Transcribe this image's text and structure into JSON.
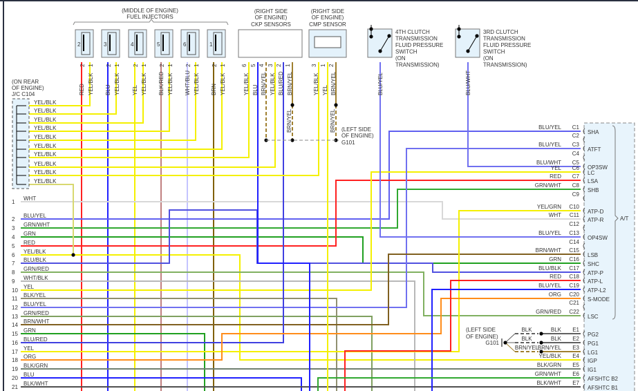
{
  "labels": {
    "injectors_location": "(MIDDLE OF ENGINE)",
    "injectors_title": "FUEL INJECTORS",
    "ckp_location_1": "(RIGHT SIDE",
    "ckp_location_2": "OF ENGINE)",
    "ckp_title": "CKP SENSORS",
    "cmp_location_1": "(RIGHT SIDE",
    "cmp_location_2": "OF ENGINE)",
    "cmp_title": "CMP SENSOR",
    "jc_location_1": "(ON REAR",
    "jc_location_2": "OF ENGINE)",
    "jc_title": "J/C C104",
    "ground_location_1": "(LEFT SIDE",
    "ground_location_2": "OF ENGINE)",
    "ground_id": "G101",
    "at_label": "A/T"
  },
  "switches": [
    {
      "lines": [
        "4TH CLUTCH",
        "TRANSMISSION",
        "FLUID PRESSURE",
        "SWITCH",
        "(ON",
        "TRANSMISSION)"
      ],
      "wire": "BLU/YEL",
      "color": "#7070f0"
    },
    {
      "lines": [
        "3RD CLUTCH",
        "TRANSMISSION",
        "FLUID PRESSURE",
        "SWITCH",
        "(ON",
        "TRANSMISSION)"
      ],
      "wire": "BLU/WHT",
      "color": "#7070f0"
    }
  ],
  "injectors": [
    {
      "num": "2",
      "pin2": "2",
      "pin1": "1",
      "wire2": "RED",
      "color2": "#ff2020",
      "wire1": "YEL/BLK"
    },
    {
      "num": "3",
      "pin2": "2",
      "pin1": "1",
      "wire2": "BLU",
      "color2": "#2020ff",
      "wire1": "YEL/BLK"
    },
    {
      "num": "4",
      "pin2": "2",
      "pin1": "1",
      "wire2": "YEL",
      "color2": "#f4f000",
      "wire1": "YEL/BLK"
    },
    {
      "num": "5",
      "pin2": "2",
      "pin1": "1",
      "wire2": "BLK/RED",
      "color2": "#c08080",
      "wire1": "YEL/BLK"
    },
    {
      "num": "6",
      "pin2": "2",
      "pin1": "1",
      "wire2": "WHT/BLU",
      "color2": "#c4c4ff",
      "wire1": "YEL/BLK"
    },
    {
      "num": "1",
      "pin2": "2",
      "pin1": "1",
      "wire2": "BRN",
      "color2": "#806000",
      "wire1": "YEL/BLK"
    }
  ],
  "ckp_pins": [
    {
      "pin": "6",
      "wire": "YEL/BLK",
      "color": "#f4f000"
    },
    {
      "pin": "5",
      "wire": "BLU",
      "color": "#2020ff"
    },
    {
      "pin": "4",
      "wire": "BRN/YEL",
      "color": "#a08030"
    },
    {
      "pin": "3",
      "wire": "YEL/BLK",
      "color": "#f4f000"
    },
    {
      "pin": "2",
      "wire": "BLU/RED",
      "color": "#5050f0"
    },
    {
      "pin": "1",
      "wire": "BRN/YEL",
      "color": "#a08030"
    }
  ],
  "cmp_pins": [
    {
      "pin": "3",
      "wire": "YEL/BLK",
      "color": "#f4f000"
    },
    {
      "pin": "1",
      "wire": "YEL",
      "color": "#f4f000"
    },
    {
      "pin": "2",
      "wire": "BRN/YEL",
      "color": "#a08030"
    }
  ],
  "ground_splice_wires": [
    "BRN/YEL",
    "BRN/YEL"
  ],
  "jc_rows": [
    "YEL/BLK",
    "YEL/BLK",
    "YEL/BLK",
    "YEL/BLK",
    "YEL/BLK",
    "YEL/BLK",
    "YEL/BLK",
    "YEL/BLK",
    "YEL/BLK",
    "YEL/BLK"
  ],
  "rows": [
    {
      "num": "1",
      "wire": "WHT",
      "color": "#d8d8d8"
    },
    {
      "num": "2",
      "wire": "BLU/YEL",
      "color": "#6060f0"
    },
    {
      "num": "3",
      "wire": "GRN/WHT",
      "color": "#30a830"
    },
    {
      "num": "4",
      "wire": "GRN",
      "color": "#20a020"
    },
    {
      "num": "5",
      "wire": "RED",
      "color": "#ff2020"
    },
    {
      "num": "6",
      "wire": "YEL/BLK",
      "color": "#f4f000"
    },
    {
      "num": "7",
      "wire": "BLU/BLK",
      "color": "#5050e0"
    },
    {
      "num": "8",
      "wire": "GRN/RED",
      "color": "#80b060"
    },
    {
      "num": "9",
      "wire": "WHT/BLK",
      "color": "#b8b8b8"
    },
    {
      "num": "10",
      "wire": "YEL",
      "color": "#f4f000"
    },
    {
      "num": "11",
      "wire": "BLK/YEL",
      "color": "#909070"
    },
    {
      "num": "12",
      "wire": "BLU/YEL",
      "color": "#7070f0"
    },
    {
      "num": "13",
      "wire": "GRN/RED",
      "color": "#80a060"
    },
    {
      "num": "14",
      "wire": "BRN/WHT",
      "color": "#806020"
    },
    {
      "num": "15",
      "wire": "GRN",
      "color": "#20a020"
    },
    {
      "num": "16",
      "wire": "BLU/RED",
      "color": "#4040e0"
    },
    {
      "num": "17",
      "wire": "YEL",
      "color": "#f4f000"
    },
    {
      "num": "18",
      "wire": "ORG",
      "color": "#ff8c1a"
    },
    {
      "num": "19",
      "wire": "BLK/GRN",
      "color": "#708070"
    },
    {
      "num": "20",
      "wire": "BLU",
      "color": "#2020ff"
    },
    {
      "num": "21",
      "wire": "BLK/WHT",
      "color": "#505050"
    }
  ],
  "pins": [
    {
      "pin": "C1",
      "wire": "BLU/YEL",
      "func": "SHA",
      "color": "#2020ff"
    },
    {
      "pin": "C2",
      "wire": "",
      "func": ""
    },
    {
      "pin": "C3",
      "wire": "BLU/YEL",
      "func": "ATFT",
      "color": "#7070f0"
    },
    {
      "pin": "C4",
      "wire": "",
      "func": ""
    },
    {
      "pin": "C5",
      "wire": "BLU/WHT",
      "func": "OP3SW",
      "color": "#7070f0"
    },
    {
      "pin": "C6",
      "wire": "YEL",
      "func": "LC",
      "color": "#f4f000"
    },
    {
      "pin": "C7",
      "wire": "RED",
      "func": "LSA",
      "color": "#ff2020"
    },
    {
      "pin": "C8",
      "wire": "GRN/WHT",
      "func": "SHB",
      "color": "#30a830"
    },
    {
      "pin": "C9",
      "wire": "",
      "func": ""
    },
    {
      "pin": "C10",
      "wire": "YEL/GRN",
      "func": "ATP-D",
      "color": "#f4f000"
    },
    {
      "pin": "C11",
      "wire": "WHT",
      "func": "ATP-R",
      "color": "#d8d8d8"
    },
    {
      "pin": "C12",
      "wire": "",
      "func": ""
    },
    {
      "pin": "C13",
      "wire": "BLU/YEL",
      "func": "OP4SW",
      "color": "#6060f0"
    },
    {
      "pin": "C14",
      "wire": "",
      "func": ""
    },
    {
      "pin": "C15",
      "wire": "BRN/WHT",
      "func": "LSB",
      "color": "#806020"
    },
    {
      "pin": "C16",
      "wire": "GRN",
      "func": "SHC",
      "color": "#20a020"
    },
    {
      "pin": "C17",
      "wire": "BLU/BLK",
      "func": "ATP-P",
      "color": "#5050e0"
    },
    {
      "pin": "C18",
      "wire": "RED",
      "func": "ATP-L",
      "color": "#ff2020"
    },
    {
      "pin": "C19",
      "wire": "BLU/YEL",
      "func": "ATP-L2",
      "color": "#2020ff"
    },
    {
      "pin": "C20",
      "wire": "ORG",
      "func": "S-MODE",
      "color": "#ff8c1a"
    },
    {
      "pin": "C21",
      "wire": "",
      "func": ""
    },
    {
      "pin": "C22",
      "wire": "GRN/RED",
      "func": "LSC",
      "color": "#80b060"
    },
    {
      "pin": "E1",
      "wire": "BLK",
      "func": "PG2",
      "color": "#606060",
      "ground_wire": "BLK"
    },
    {
      "pin": "E2",
      "wire": "BLK",
      "func": "PG1",
      "color": "#606060",
      "ground_wire": "BLK"
    },
    {
      "pin": "E3",
      "wire": "BRN/YEL",
      "func": "LG1",
      "color": "#a08030",
      "ground_wire": "BRN/YEL"
    },
    {
      "pin": "E4",
      "wire": "YEL/BLK",
      "func": "IGP",
      "color": "#f4f000"
    },
    {
      "pin": "E5",
      "wire": "BLK/GRN",
      "func": "IG1",
      "color": "#708070"
    },
    {
      "pin": "E6",
      "wire": "GRN/WHT",
      "func": "AFSHTC B2",
      "color": "#30a830"
    },
    {
      "pin": "E7",
      "wire": "BLK/WHT",
      "func": "AFSHTC B1",
      "color": "#505050"
    }
  ]
}
